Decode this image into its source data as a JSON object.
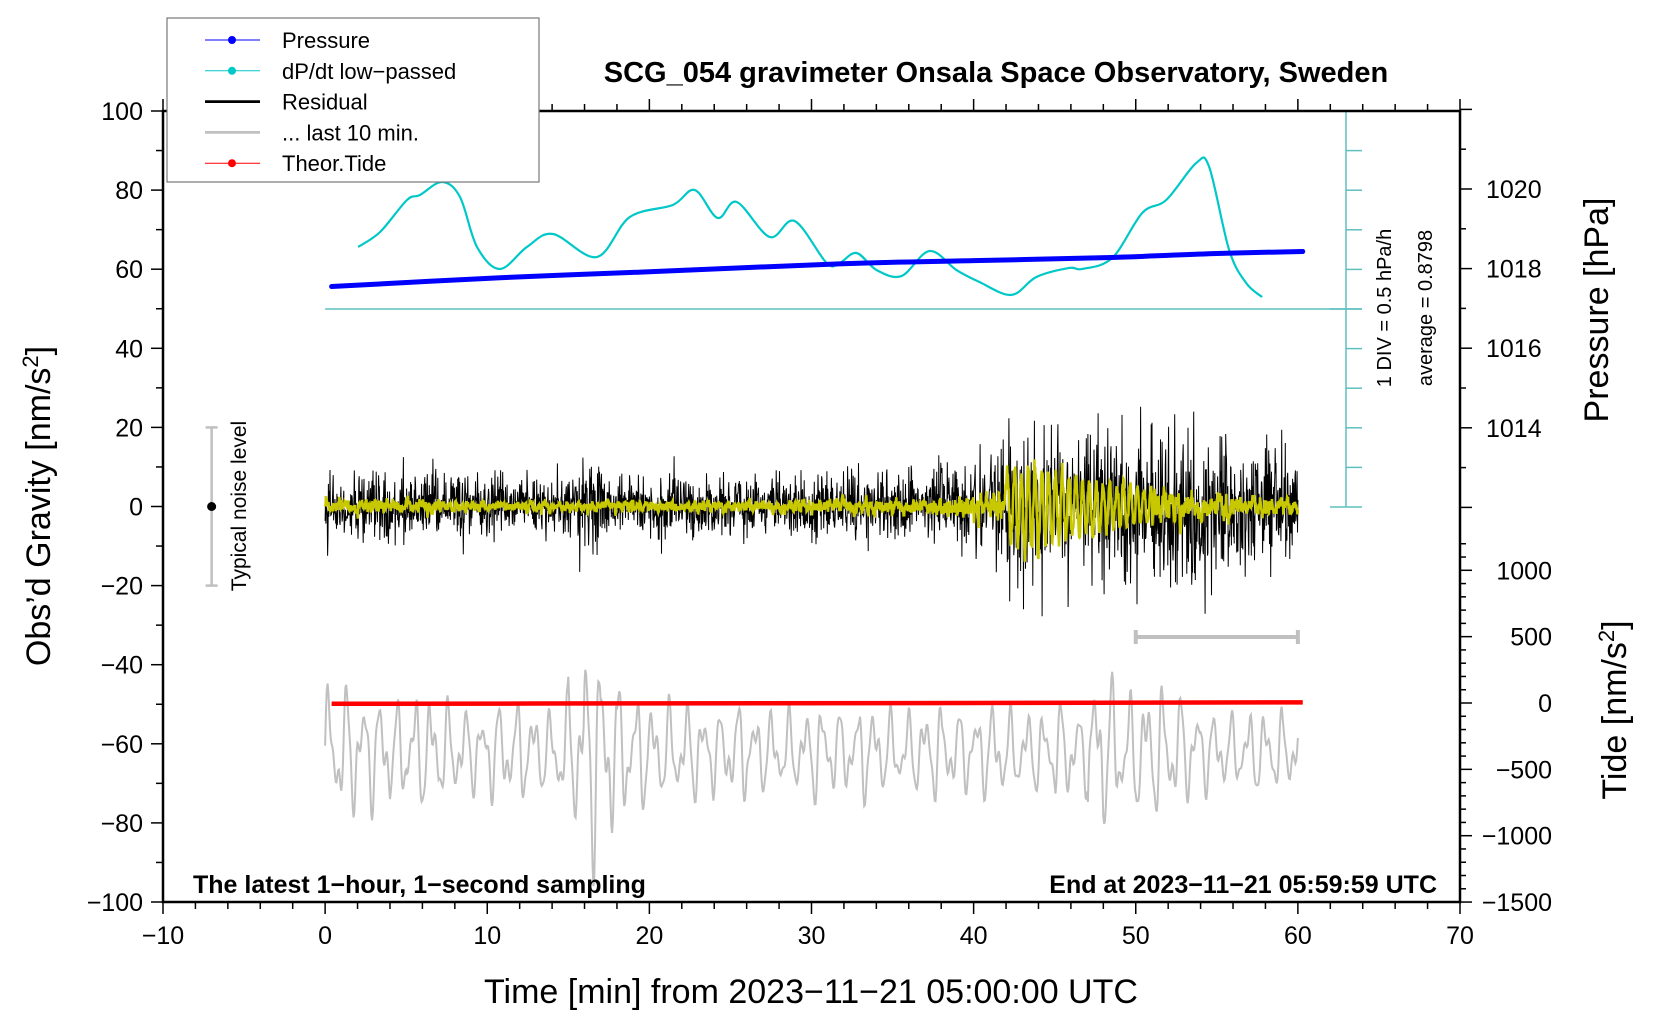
{
  "chart_data": {
    "type": "line",
    "title": "SCG_054 gravimeter Onsala Space Observatory, Sweden",
    "xlabel": "Time [min] from 2023−11−21 05:00:00 UTC",
    "ylabel_left": "Obs’d Gravity [nm/s",
    "ylabel_left_sup": "2",
    "ylabel_left_end": "]",
    "ylabel_right_pressure": "Pressure [hPa]",
    "ylabel_right_tide": "Tide [nm/s",
    "ylabel_right_tide_sup": "2",
    "ylabel_right_tide_end": "]",
    "xlim": [
      -10,
      70
    ],
    "ylim": [
      -100,
      100
    ],
    "pressure_lim": [
      1012,
      1022
    ],
    "tide_lim": [
      -1500,
      1250
    ],
    "x_ticks": [
      "−10",
      "0",
      "10",
      "20",
      "30",
      "40",
      "50",
      "60",
      "70"
    ],
    "x_tick_values": [
      -10,
      0,
      10,
      20,
      30,
      40,
      50,
      60,
      70
    ],
    "y_ticks": [
      "100",
      "80",
      "60",
      "40",
      "20",
      "0",
      "−20",
      "−40",
      "−60",
      "−80",
      "−100"
    ],
    "y_tick_values": [
      100,
      80,
      60,
      40,
      20,
      0,
      -20,
      -40,
      -60,
      -80,
      -100
    ],
    "pressure_ticks": [
      "1020",
      "1018",
      "1016",
      "1014"
    ],
    "pressure_tick_values": [
      1020,
      1018,
      1016,
      1014
    ],
    "tide_ticks": [
      "1000",
      "500",
      "0",
      "−500",
      "−1000",
      "−1500"
    ],
    "tide_tick_values": [
      1000,
      500,
      0,
      -500,
      -1000,
      -1500
    ],
    "legend": {
      "placement": "top-left",
      "entries": [
        {
          "label": "Pressure",
          "color": "#0000ff",
          "marker": "dot"
        },
        {
          "label": "dP/dt low−passed",
          "color": "#00c8c8",
          "marker": "dot"
        },
        {
          "label": "Residual",
          "color": "#000000",
          "marker": "line"
        },
        {
          "label": "... last 10 min.",
          "color": "#c0c0c0",
          "marker": "line"
        },
        {
          "label": "Theor.Tide",
          "color": "#ff0000",
          "marker": "dot"
        }
      ]
    },
    "annotations": {
      "bottom_left": "The latest 1−hour, 1−second sampling",
      "bottom_right": "End at 2023−11−21 05:59:59 UTC",
      "noise_label": "Typical noise level",
      "noise_level_range": [
        -20,
        20
      ],
      "noise_level_x": -7,
      "dpdt_scale": "1 DIV = 0.5 hPa/h",
      "dpdt_average": "average = 0.8798",
      "last10_bracket_x": [
        50,
        60
      ],
      "last10_bracket_y": -33
    },
    "series": [
      {
        "name": "Pressure",
        "axis": "pressure",
        "unit": "hPa",
        "color": "#0000ff",
        "x": [
          0.4,
          10.8,
          20,
          31.7,
          40,
          48.5,
          55,
          60.3
        ],
        "y": [
          1017.55,
          1017.77,
          1017.92,
          1018.12,
          1018.2,
          1018.28,
          1018.38,
          1018.43
        ]
      },
      {
        "name": "dP/dt low-passed",
        "axis": "dpdt",
        "unit": "hPa/h",
        "color": "#00c8c8",
        "div_value": 0.5,
        "average": 0.8798,
        "x": [
          2.03,
          3.39,
          5.05,
          5.85,
          7.21,
          8.32,
          9.37,
          10.78,
          12.45,
          14.05,
          16.76,
          18.79,
          21.44,
          22.8,
          24.21,
          25.39,
          27.42,
          28.96,
          30.93,
          31.73,
          32.78,
          34.01,
          35.55,
          37.28,
          38.94,
          40.36,
          42.33,
          43.87,
          45.9,
          46.7,
          48.55,
          50.4,
          51.88,
          53.73,
          54.53,
          55.76,
          56.81,
          57.79
        ],
        "y": [
          1.663,
          1.852,
          2.256,
          2.319,
          2.483,
          2.294,
          1.663,
          1.385,
          1.663,
          1.827,
          1.536,
          2.041,
          2.193,
          2.382,
          2.029,
          2.231,
          1.789,
          1.991,
          1.461,
          1.461,
          1.587,
          1.372,
          1.296,
          1.612,
          1.372,
          1.221,
          1.057,
          1.284,
          1.398,
          1.385,
          1.524,
          2.092,
          2.256,
          2.723,
          2.673,
          1.625,
          1.208,
          1.031
        ]
      },
      {
        "name": "Residual",
        "axis": "gravity",
        "unit": "nm/s2",
        "color": "#000000",
        "x_range": [
          0,
          60
        ],
        "envelope_per_minute": [
          10,
          10,
          11,
          12,
          10,
          10,
          11,
          10,
          12,
          10,
          11,
          10,
          9,
          10,
          10,
          12,
          14,
          11,
          10,
          10,
          10,
          11,
          10,
          10,
          10,
          11,
          10,
          11,
          10,
          11,
          12,
          10,
          11,
          10,
          11,
          12,
          11,
          12,
          14,
          14,
          15,
          18,
          22,
          24,
          28,
          30,
          24,
          24,
          22,
          24,
          26,
          24,
          26,
          34,
          24,
          22,
          22,
          18,
          18,
          16
        ],
        "filtered_color": "#c8c800",
        "filtered_envelope_per_minute": [
          2,
          2,
          2,
          2,
          2,
          2,
          2,
          1.5,
          1.5,
          1.5,
          1.5,
          1.5,
          1.5,
          1.5,
          1.5,
          1.5,
          1.5,
          1.5,
          1.5,
          1.5,
          1.5,
          1.5,
          1.5,
          1.5,
          1.5,
          1.5,
          1.5,
          1.5,
          1.5,
          2,
          2,
          2,
          2,
          2,
          2,
          2,
          2,
          2.5,
          3,
          3,
          4,
          4,
          12,
          14,
          12,
          11,
          9,
          8,
          8,
          7,
          6,
          5,
          4,
          3,
          3,
          3,
          2.5,
          2,
          2,
          2
        ]
      },
      {
        "name": "... last 10 min.",
        "axis": "gravity",
        "unit": "nm/s2",
        "color": "#c0c0c0",
        "represents_minutes": [
          50,
          60
        ],
        "offset": -62,
        "envelope_per_minute": [
          16,
          16,
          14,
          14,
          12,
          14,
          14,
          12,
          11,
          10,
          12,
          12,
          12,
          10,
          14,
          18,
          28,
          22,
          16,
          14,
          12,
          12,
          12,
          11,
          10,
          12,
          10,
          10,
          10,
          10,
          12,
          10,
          10,
          12,
          10,
          10,
          10,
          12,
          10,
          10,
          11,
          12,
          10,
          10,
          10,
          12,
          10,
          20,
          18,
          14,
          16,
          16,
          14,
          12,
          10,
          9,
          9,
          10,
          10,
          9
        ]
      },
      {
        "name": "Theor.Tide",
        "axis": "tide",
        "unit": "nm/s2",
        "color": "#ff0000",
        "x": [
          0.4,
          20,
          40,
          60.3
        ],
        "y": [
          -6,
          -3,
          0,
          5
        ]
      }
    ]
  }
}
